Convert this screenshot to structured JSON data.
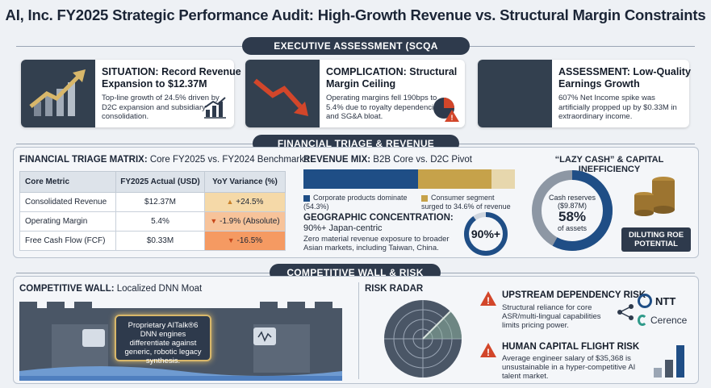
{
  "title": "AI, Inc. FY2025 Strategic Performance Audit: High-Growth Revenue vs. Structural Margin Constraints",
  "sections": {
    "executive": "EXECUTIVE ASSESSMENT (SCQA FRAMEWORK)",
    "triage": "FINANCIAL TRIAGE & REVENUE ANATOMY",
    "competitive": "COMPETITIVE WALL & RISK RADAR"
  },
  "scqa": [
    {
      "title": "SITUATION: Record Revenue Expansion to $12.37M",
      "text": "Top-line growth of 24.5% driven by D2C expansion and subsidiary consolidation."
    },
    {
      "title": "COMPLICATION: Structural Margin Ceiling",
      "text": "Operating margins fell 190bps to 5.4% due to royalty dependencies and SG&A bloat."
    },
    {
      "title": "ASSESSMENT: Low-Quality Earnings Growth",
      "text": "607% Net Income spike was artificially propped up by $0.33M in extraordinary income."
    }
  ],
  "triage": {
    "title_bold": "FINANCIAL TRIAGE MATRIX:",
    "title_rest": " Core FY2025 vs. FY2024 Benchmarks",
    "headers": [
      "Core Metric",
      "FY2025 Actual (USD)",
      "YoY Variance (%)"
    ],
    "rows": [
      {
        "metric": "Consolidated Revenue",
        "actual": "$12.37M",
        "variance": "+24.5%"
      },
      {
        "metric": "Operating Margin",
        "actual": "5.4%",
        "variance": "-1.9% (Absolute)"
      },
      {
        "metric": "Free Cash Flow (FCF)",
        "actual": "$0.33M",
        "variance": "-16.5%"
      }
    ]
  },
  "revenue_mix": {
    "title_bold": "REVENUE MIX:",
    "title_rest": " B2B Core vs. D2C Pivot",
    "b2b_share": 54.3,
    "d2c_share": 34.6,
    "b2b_label": "Corporate products dominate (54.3%)",
    "d2c_label": "Consumer segment surged to 34.6% of revenue",
    "colors": {
      "b2b": "#1f4e86",
      "d2c": "#c6a24a",
      "other": "#e7d7ad"
    }
  },
  "geo": {
    "title_bold": "GEOGRAPHIC CONCENTRATION:",
    "subtitle": "90%+ Japan-centric",
    "text": "Zero material revenue exposure to broader Asian markets, including Taiwan, China.",
    "value": "90%+",
    "share": 90
  },
  "lazy_cash": {
    "title": "“LAZY CASH” & CAPITAL INEFFICIENCY",
    "label1": "Cash reserves",
    "label2": "($9.87M)",
    "value": "58%",
    "label3": "of assets",
    "share": 58,
    "badge": "DILUTING ROE POTENTIAL"
  },
  "competitive": {
    "title_bold": "COMPETITIVE WALL:",
    "title_rest": " Localized DNN Moat",
    "text": "Proprietary AITalk®6 DNN engines differentiate against generic, robotic legacy synthesis."
  },
  "risk": {
    "title": "RISK RADAR",
    "items": [
      {
        "title": "UPSTREAM DEPENDENCY RISK",
        "text": "Structural reliance for core ASR/multi-lingual capabilities limits pricing power."
      },
      {
        "title": "HUMAN CAPITAL FLIGHT RISK",
        "text": "Average engineer salary of $35,368 is unsustainable in a hyper-competitive AI talent market."
      }
    ],
    "partners": [
      "NTT",
      "Cerence"
    ]
  }
}
